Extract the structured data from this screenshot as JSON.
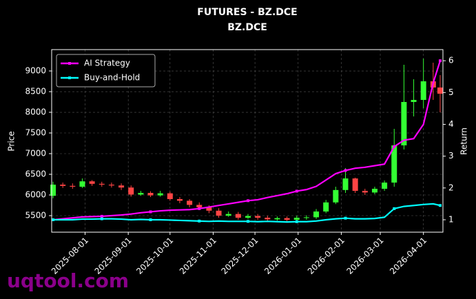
{
  "chart_data": {
    "type": "candlestick",
    "title": "FUTURES - BZ.DCE",
    "subtitle": "BZ.DCE",
    "ylabel": "Price",
    "y2label": "Return",
    "watermark": "uqtool.com",
    "x": [
      "2025-07-09",
      "2025-07-16",
      "2025-07-23",
      "2025-07-30",
      "2025-08-06",
      "2025-08-13",
      "2025-08-20",
      "2025-08-27",
      "2025-09-03",
      "2025-09-10",
      "2025-09-17",
      "2025-09-24",
      "2025-10-01",
      "2025-10-08",
      "2025-10-15",
      "2025-10-22",
      "2025-10-29",
      "2025-11-05",
      "2025-11-12",
      "2025-11-19",
      "2025-11-26",
      "2025-12-03",
      "2025-12-10",
      "2025-12-17",
      "2025-12-24",
      "2025-12-31",
      "2026-01-07",
      "2026-01-14",
      "2026-01-21",
      "2026-01-28",
      "2026-02-04",
      "2026-02-11",
      "2026-02-18",
      "2026-02-25",
      "2026-03-04",
      "2026-03-11",
      "2026-03-18",
      "2026-03-25",
      "2026-04-01",
      "2026-04-08",
      "2026-04-13"
    ],
    "open": [
      5980,
      6250,
      6220,
      6200,
      6330,
      6270,
      6250,
      6230,
      6180,
      6010,
      6050,
      5990,
      6040,
      5900,
      5860,
      5760,
      5700,
      5620,
      5500,
      5540,
      5450,
      5490,
      5450,
      5410,
      5440,
      5400,
      5450,
      5460,
      5600,
      5820,
      6120,
      6400,
      6100,
      6060,
      6150,
      6300,
      7200,
      8250,
      8300,
      8750,
      8600
    ],
    "high": [
      6320,
      6300,
      6280,
      6400,
      6360,
      6320,
      6300,
      6280,
      6230,
      6100,
      6090,
      6100,
      6080,
      5950,
      5900,
      5820,
      5750,
      5680,
      5600,
      5590,
      5540,
      5540,
      5500,
      5480,
      5480,
      5500,
      5510,
      5660,
      5880,
      6200,
      6650,
      6420,
      6150,
      6200,
      6350,
      7600,
      9150,
      8800,
      9300,
      9200,
      8900
    ],
    "low": [
      5920,
      6170,
      6150,
      6170,
      6220,
      6200,
      6180,
      6120,
      5960,
      5980,
      5950,
      5960,
      5860,
      5800,
      5700,
      5640,
      5560,
      5450,
      5470,
      5400,
      5420,
      5400,
      5360,
      5380,
      5360,
      5370,
      5400,
      5420,
      5560,
      5780,
      6050,
      6050,
      6000,
      6020,
      6100,
      6200,
      7100,
      7900,
      8100,
      8300,
      8000
    ],
    "close": [
      6250,
      6220,
      6200,
      6330,
      6270,
      6250,
      6230,
      6180,
      6010,
      6050,
      5990,
      6040,
      5900,
      5860,
      5760,
      5700,
      5620,
      5500,
      5540,
      5450,
      5490,
      5450,
      5410,
      5440,
      5400,
      5450,
      5460,
      5600,
      5820,
      6120,
      6400,
      6100,
      6060,
      6150,
      6300,
      7200,
      8250,
      8300,
      8750,
      8600,
      8450
    ],
    "up_color": "#33ff33",
    "down_color": "#ff4444",
    "series": [
      {
        "name": "AI Strategy",
        "color": "#ff00ff",
        "axis": "y2",
        "values": [
          1.0,
          1.03,
          1.06,
          1.09,
          1.1,
          1.11,
          1.13,
          1.15,
          1.18,
          1.22,
          1.25,
          1.28,
          1.3,
          1.31,
          1.32,
          1.35,
          1.4,
          1.45,
          1.5,
          1.55,
          1.6,
          1.63,
          1.7,
          1.76,
          1.82,
          1.9,
          1.95,
          2.05,
          2.25,
          2.45,
          2.55,
          2.62,
          2.65,
          2.7,
          2.75,
          3.3,
          3.5,
          3.55,
          4.0,
          5.3,
          6.0
        ]
      },
      {
        "name": "Buy-and-Hold",
        "color": "#00ffff",
        "axis": "y2",
        "values": [
          1.0,
          1.0,
          1.0,
          1.02,
          1.02,
          1.03,
          1.03,
          1.02,
          1.0,
          1.01,
          1.0,
          1.0,
          0.99,
          0.98,
          0.97,
          0.96,
          0.95,
          0.96,
          0.95,
          0.95,
          0.95,
          0.94,
          0.95,
          0.94,
          0.93,
          0.94,
          0.94,
          0.96,
          1.0,
          1.03,
          1.05,
          1.03,
          1.03,
          1.04,
          1.08,
          1.35,
          1.42,
          1.45,
          1.48,
          1.5,
          1.45
        ]
      }
    ],
    "xlim": [
      "2025-07-08",
      "2026-04-15"
    ],
    "xticks": [
      "2025-08-01",
      "2025-09-01",
      "2025-10-01",
      "2025-11-01",
      "2025-12-01",
      "2026-01-01",
      "2026-02-01",
      "2026-03-01",
      "2026-04-01"
    ],
    "ylim": [
      5100,
      9517
    ],
    "yticks": [
      5500,
      6000,
      6500,
      7000,
      7500,
      8000,
      8500,
      9000
    ],
    "y2lim": [
      0.61,
      6.35
    ],
    "y2ticks": [
      1,
      2,
      3,
      4,
      5,
      6
    ],
    "grid": true,
    "legend": "upper left"
  }
}
